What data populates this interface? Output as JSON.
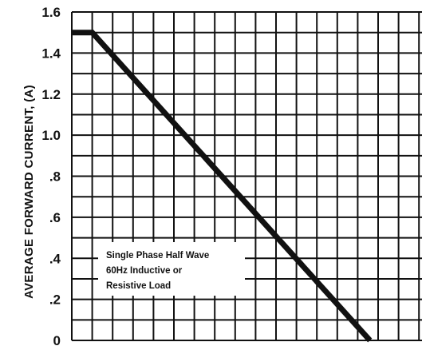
{
  "chart_data": {
    "type": "line",
    "title": "",
    "xlabel": "",
    "ylabel": "AVERAGE FORWARD CURRENT, (A)",
    "yticks": [
      "1.6",
      "1.4",
      "1.2",
      "1.0",
      ".8",
      ".6",
      ".4",
      ".2",
      "0"
    ],
    "ylim": [
      0,
      1.6
    ],
    "grid": true,
    "series": [
      {
        "points": [
          {
            "x": 0,
            "y": 1.5
          },
          {
            "x": 1,
            "y": 1.5
          },
          {
            "x": 14.6,
            "y": 0
          }
        ]
      }
    ],
    "annotation": {
      "lines": [
        "Single Phase Half Wave",
        "60Hz Inductive or",
        "Resistive Load"
      ]
    }
  }
}
